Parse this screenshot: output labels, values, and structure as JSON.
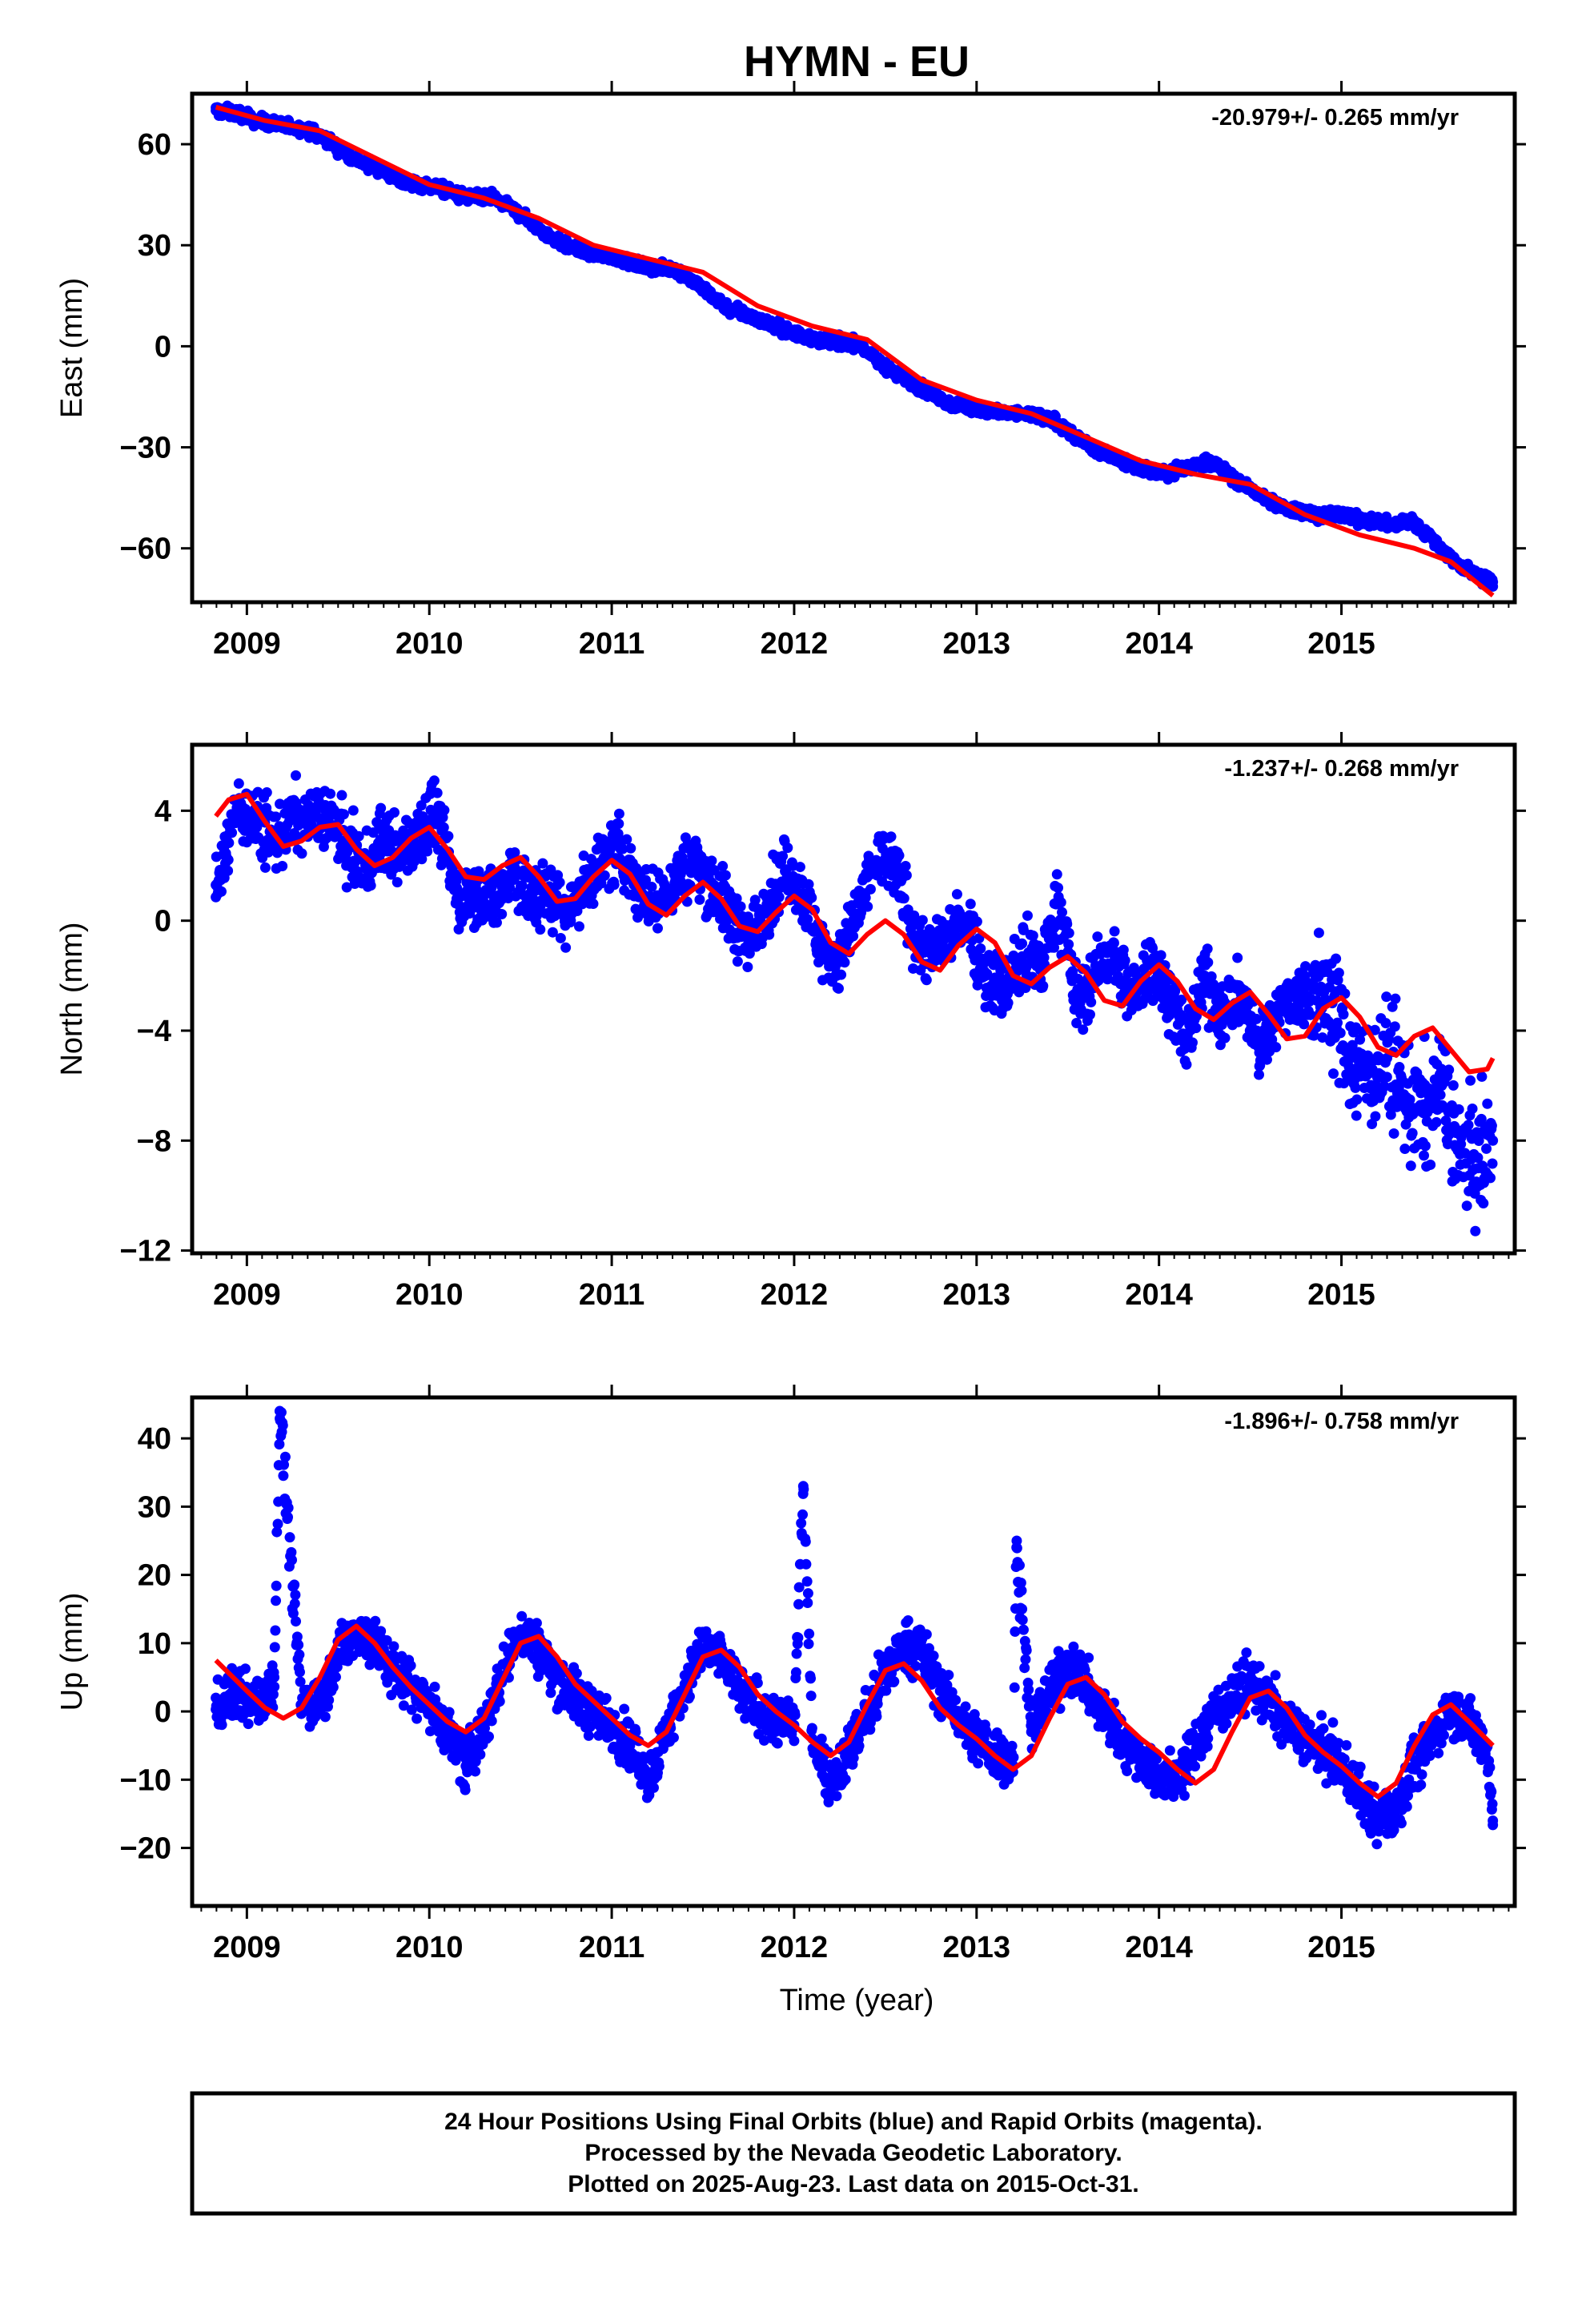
{
  "title": "HYMN - EU",
  "x_axis_title": "Time (year)",
  "footer": {
    "line1": "24 Hour Positions Using Final Orbits (blue) and Rapid Orbits (magenta).",
    "line2": "Processed by the Nevada Geodetic Laboratory.",
    "line3": "Plotted on 2025-Aug-23. Last data on 2015-Oct-31."
  },
  "colors": {
    "observations": "#0000ff",
    "model": "#ff0000",
    "frame": "#000000"
  },
  "chart_data": [
    {
      "type": "scatter",
      "ylabel": "East (mm)",
      "rate_label": "-20.979+/- 0.265 mm/yr",
      "xlim": [
        2008.7,
        2015.95
      ],
      "ylim": [
        -76,
        75
      ],
      "yticks": [
        60,
        30,
        0,
        -30,
        -60
      ],
      "ytick_labels": [
        "60",
        "30",
        "0",
        "−30",
        "−60"
      ],
      "xticks": [
        2009,
        2010,
        2011,
        2012,
        2013,
        2014,
        2015
      ],
      "xtick_labels": [
        "2009",
        "2010",
        "2011",
        "2012",
        "2013",
        "2014",
        "2015"
      ],
      "series": [
        {
          "kind": "points",
          "x": [
            2008.83,
            2008.96,
            2009.05,
            2009.15,
            2009.25,
            2009.35,
            2009.45,
            2009.55,
            2009.65,
            2009.75,
            2009.85,
            2009.95,
            2010.05,
            2010.15,
            2010.25,
            2010.35,
            2010.45,
            2010.55,
            2010.65,
            2010.75,
            2010.85,
            2010.95,
            2011.05,
            2011.15,
            2011.25,
            2011.35,
            2011.45,
            2011.55,
            2011.65,
            2011.75,
            2011.85,
            2011.95,
            2012.05,
            2012.15,
            2012.25,
            2012.35,
            2012.45,
            2012.55,
            2012.65,
            2012.75,
            2012.85,
            2012.95,
            2013.05,
            2013.15,
            2013.25,
            2013.35,
            2013.45,
            2013.55,
            2013.65,
            2013.75,
            2013.85,
            2013.95,
            2014.05,
            2014.28,
            2014.38,
            2014.48,
            2014.58,
            2014.68,
            2014.78,
            2014.88,
            2014.98,
            2015.08,
            2015.18,
            2015.28,
            2015.38,
            2015.48,
            2015.58,
            2015.68,
            2015.78,
            2015.83
          ],
          "y": [
            70,
            69,
            67,
            66,
            65,
            64,
            61,
            57,
            54,
            52,
            49,
            48,
            47,
            45,
            44,
            44,
            41,
            37,
            33,
            30,
            28,
            27,
            26,
            24,
            23,
            23,
            19,
            15,
            11,
            9,
            7,
            5,
            3,
            2,
            1,
            1,
            -4,
            -8,
            -11,
            -14,
            -17,
            -18,
            -19,
            -20,
            -20,
            -21,
            -23,
            -27,
            -31,
            -33,
            -35,
            -37,
            -38,
            -34,
            -38,
            -42,
            -45,
            -48,
            -49,
            -50,
            -50,
            -51,
            -52,
            -53,
            -52,
            -56,
            -62,
            -66,
            -69,
            -70
          ]
        },
        {
          "kind": "model",
          "x": [
            2008.83,
            2009.1,
            2009.4,
            2009.7,
            2010.0,
            2010.3,
            2010.6,
            2010.9,
            2011.2,
            2011.5,
            2011.8,
            2012.1,
            2012.4,
            2012.7,
            2013.0,
            2013.3,
            2013.6,
            2013.9,
            2014.2,
            2014.5,
            2014.8,
            2015.1,
            2015.4,
            2015.6,
            2015.83
          ],
          "y": [
            71,
            67,
            64,
            56,
            48,
            44,
            38,
            30,
            26,
            22,
            12,
            6,
            2,
            -10,
            -16,
            -20,
            -27,
            -34,
            -38,
            -41,
            -50,
            -56,
            -60,
            -64,
            -74
          ]
        }
      ]
    },
    {
      "type": "scatter",
      "ylabel": "North (mm)",
      "rate_label": "-1.237+/- 0.268 mm/yr",
      "xlim": [
        2008.7,
        2015.95
      ],
      "ylim": [
        -12.1,
        6.4
      ],
      "yticks": [
        4,
        0,
        -4,
        -8,
        -12
      ],
      "ytick_labels": [
        "4",
        "0",
        "−4",
        "−8",
        "−12"
      ],
      "xticks": [
        2009,
        2010,
        2011,
        2012,
        2013,
        2014,
        2015
      ],
      "xtick_labels": [
        "2009",
        "2010",
        "2011",
        "2012",
        "2013",
        "2014",
        "2015"
      ],
      "series": [
        {
          "kind": "points",
          "x": [
            2008.83,
            2008.95,
            2009.05,
            2009.15,
            2009.25,
            2009.35,
            2009.45,
            2009.55,
            2009.65,
            2009.75,
            2009.85,
            2009.95,
            2010.05,
            2010.15,
            2010.25,
            2010.35,
            2010.45,
            2010.55,
            2010.65,
            2010.75,
            2010.85,
            2010.95,
            2011.05,
            2011.15,
            2011.25,
            2011.35,
            2011.45,
            2011.55,
            2011.65,
            2011.75,
            2011.85,
            2011.95,
            2012.05,
            2012.15,
            2012.25,
            2012.45,
            2012.55,
            2012.65,
            2012.75,
            2012.85,
            2012.95,
            2013.05,
            2013.15,
            2013.25,
            2013.35,
            2013.45,
            2013.55,
            2013.65,
            2013.75,
            2013.85,
            2013.95,
            2014.05,
            2014.15,
            2014.25,
            2014.35,
            2014.45,
            2014.55,
            2014.65,
            2014.75,
            2014.85,
            2014.95,
            2015.05,
            2015.15,
            2015.25,
            2015.35,
            2015.45,
            2015.55,
            2015.65,
            2015.75,
            2015.83
          ],
          "y": [
            1.3,
            4.2,
            3.5,
            2.8,
            3.8,
            3.6,
            3.9,
            2.5,
            1.9,
            3.0,
            2.4,
            3.5,
            3.8,
            0.8,
            1.2,
            0.5,
            2.0,
            0.8,
            1.0,
            0.3,
            1.2,
            2.2,
            2.6,
            1.1,
            0.5,
            1.5,
            2.2,
            1.3,
            0.2,
            -0.8,
            0.6,
            1.8,
            1.0,
            -1.0,
            -1.5,
            2.2,
            2.0,
            -0.5,
            -1.2,
            -0.5,
            0.0,
            -2.0,
            -2.5,
            -1.3,
            -1.8,
            0.8,
            -3.0,
            -2.0,
            -1.2,
            -2.8,
            -1.6,
            -2.5,
            -4.5,
            -2.0,
            -3.5,
            -2.6,
            -4.8,
            -3.2,
            -2.8,
            -2.5,
            -3.0,
            -5.0,
            -5.5,
            -5.0,
            -6.5,
            -7.0,
            -6.0,
            -8.5,
            -9.0,
            -8.0
          ]
        },
        {
          "kind": "model",
          "x": [
            2008.83,
            2008.9,
            2009.0,
            2009.1,
            2009.2,
            2009.3,
            2009.4,
            2009.5,
            2009.6,
            2009.7,
            2009.8,
            2009.9,
            2010.0,
            2010.1,
            2010.2,
            2010.3,
            2010.4,
            2010.5,
            2010.6,
            2010.7,
            2010.8,
            2010.9,
            2011.0,
            2011.1,
            2011.2,
            2011.3,
            2011.4,
            2011.5,
            2011.6,
            2011.7,
            2011.8,
            2011.9,
            2012.0,
            2012.1,
            2012.2,
            2012.3,
            2012.4,
            2012.5,
            2012.6,
            2012.7,
            2012.8,
            2012.9,
            2013.0,
            2013.1,
            2013.2,
            2013.3,
            2013.4,
            2013.5,
            2013.6,
            2013.7,
            2013.8,
            2013.9,
            2014.0,
            2014.1,
            2014.2,
            2014.3,
            2014.4,
            2014.5,
            2014.6,
            2014.7,
            2014.8,
            2014.9,
            2015.0,
            2015.1,
            2015.2,
            2015.3,
            2015.4,
            2015.5,
            2015.6,
            2015.7,
            2015.8,
            2015.83
          ],
          "y": [
            3.8,
            4.4,
            4.6,
            3.6,
            2.7,
            2.9,
            3.4,
            3.5,
            2.6,
            2.0,
            2.3,
            3.0,
            3.4,
            2.6,
            1.6,
            1.5,
            2.0,
            2.3,
            1.6,
            0.7,
            0.8,
            1.6,
            2.2,
            1.7,
            0.6,
            0.2,
            0.9,
            1.4,
            0.8,
            -0.2,
            -0.4,
            0.3,
            0.9,
            0.4,
            -0.8,
            -1.2,
            -0.5,
            0.0,
            -0.5,
            -1.5,
            -1.8,
            -0.9,
            -0.3,
            -0.8,
            -2.0,
            -2.3,
            -1.7,
            -1.3,
            -1.9,
            -2.9,
            -3.1,
            -2.2,
            -1.6,
            -2.2,
            -3.2,
            -3.6,
            -3.0,
            -2.6,
            -3.4,
            -4.3,
            -4.2,
            -3.2,
            -2.8,
            -3.5,
            -4.6,
            -4.9,
            -4.2,
            -3.9,
            -4.7,
            -5.5,
            -5.4,
            -5.0
          ]
        }
      ]
    },
    {
      "type": "scatter",
      "ylabel": "Up (mm)",
      "rate_label": "-1.896+/- 0.758 mm/yr",
      "xlim": [
        2008.7,
        2015.95
      ],
      "ylim": [
        -28.5,
        46
      ],
      "yticks": [
        40,
        30,
        20,
        10,
        0,
        -10,
        -20
      ],
      "ytick_labels": [
        "40",
        "30",
        "20",
        "10",
        "0",
        "−10",
        "−20"
      ],
      "xticks": [
        2009,
        2010,
        2011,
        2012,
        2013,
        2014,
        2015
      ],
      "xtick_labels": [
        "2009",
        "2010",
        "2011",
        "2012",
        "2013",
        "2014",
        "2015"
      ],
      "series": [
        {
          "kind": "points",
          "x": [
            2008.83,
            2008.95,
            2009.05,
            2009.15,
            2009.18,
            2009.3,
            2009.4,
            2009.5,
            2009.6,
            2009.7,
            2009.8,
            2009.9,
            2010.0,
            2010.1,
            2010.2,
            2010.3,
            2010.4,
            2010.5,
            2010.6,
            2010.7,
            2010.8,
            2010.9,
            2011.0,
            2011.1,
            2011.2,
            2011.3,
            2011.4,
            2011.5,
            2011.6,
            2011.7,
            2011.8,
            2011.9,
            2012.0,
            2012.05,
            2012.1,
            2012.2,
            2012.3,
            2012.4,
            2012.5,
            2012.6,
            2012.7,
            2012.8,
            2012.9,
            2013.0,
            2013.1,
            2013.2,
            2013.22,
            2013.3,
            2013.4,
            2013.5,
            2013.6,
            2013.7,
            2013.8,
            2013.9,
            2014.0,
            2014.1,
            2014.3,
            2014.4,
            2014.5,
            2014.6,
            2014.7,
            2014.8,
            2014.9,
            2015.0,
            2015.1,
            2015.2,
            2015.3,
            2015.4,
            2015.5,
            2015.6,
            2015.7,
            2015.8,
            2015.83
          ],
          "y": [
            0.3,
            3.0,
            1.0,
            5.0,
            44.0,
            1.0,
            2.0,
            8.0,
            12.0,
            10.0,
            6.0,
            4.0,
            1.0,
            -3.0,
            -8.0,
            -2.0,
            5.0,
            12.0,
            9.0,
            5.0,
            2.0,
            0.0,
            -2.0,
            -5.0,
            -10.0,
            -3.0,
            4.0,
            9.0,
            8.0,
            3.0,
            0.0,
            -1.0,
            -2.0,
            33.0,
            -4.0,
            -10.0,
            -6.0,
            0.0,
            5.0,
            10.0,
            9.0,
            3.0,
            -1.0,
            -4.0,
            -6.0,
            -8.0,
            25.0,
            -3.0,
            3.0,
            7.0,
            4.0,
            -1.0,
            -4.0,
            -7.0,
            -9.0,
            -10.0,
            0.0,
            2.0,
            4.0,
            2.0,
            -2.0,
            -4.0,
            -6.0,
            -8.0,
            -12.0,
            -16.0,
            -14.0,
            -8.0,
            -4.0,
            1.0,
            -2.0,
            -5.0,
            -16.0
          ]
        },
        {
          "kind": "model",
          "x": [
            2008.83,
            2009.0,
            2009.1,
            2009.2,
            2009.3,
            2009.4,
            2009.5,
            2009.6,
            2009.7,
            2009.8,
            2009.9,
            2010.0,
            2010.1,
            2010.2,
            2010.3,
            2010.4,
            2010.5,
            2010.6,
            2010.7,
            2010.8,
            2010.9,
            2011.0,
            2011.1,
            2011.2,
            2011.3,
            2011.4,
            2011.5,
            2011.6,
            2011.7,
            2011.8,
            2011.9,
            2012.0,
            2012.1,
            2012.2,
            2012.3,
            2012.4,
            2012.5,
            2012.6,
            2012.7,
            2012.8,
            2012.9,
            2013.0,
            2013.1,
            2013.2,
            2013.3,
            2013.4,
            2013.5,
            2013.6,
            2013.7,
            2013.8,
            2013.9,
            2014.0,
            2014.1,
            2014.2,
            2014.3,
            2014.4,
            2014.5,
            2014.6,
            2014.7,
            2014.8,
            2014.9,
            2015.0,
            2015.1,
            2015.2,
            2015.3,
            2015.4,
            2015.5,
            2015.6,
            2015.7,
            2015.83
          ],
          "y": [
            7.5,
            3.0,
            0.5,
            -1.0,
            0.5,
            5.0,
            10.5,
            12.5,
            10.0,
            6.5,
            3.5,
            1.0,
            -1.5,
            -3.0,
            -1.0,
            4.5,
            10.0,
            11.0,
            8.0,
            4.0,
            1.5,
            -1.0,
            -3.5,
            -5.0,
            -3.0,
            2.5,
            8.0,
            9.0,
            6.5,
            2.5,
            0.0,
            -2.0,
            -4.5,
            -6.5,
            -4.5,
            1.0,
            6.0,
            7.0,
            4.5,
            0.5,
            -2.0,
            -4.0,
            -6.5,
            -8.5,
            -6.5,
            -1.0,
            4.0,
            5.0,
            2.5,
            -1.5,
            -4.0,
            -6.0,
            -8.5,
            -10.5,
            -8.5,
            -3.0,
            2.0,
            3.0,
            0.5,
            -3.5,
            -6.0,
            -8.0,
            -10.5,
            -12.5,
            -10.5,
            -5.0,
            -0.5,
            1.0,
            -1.5,
            -5.0
          ]
        }
      ]
    }
  ]
}
